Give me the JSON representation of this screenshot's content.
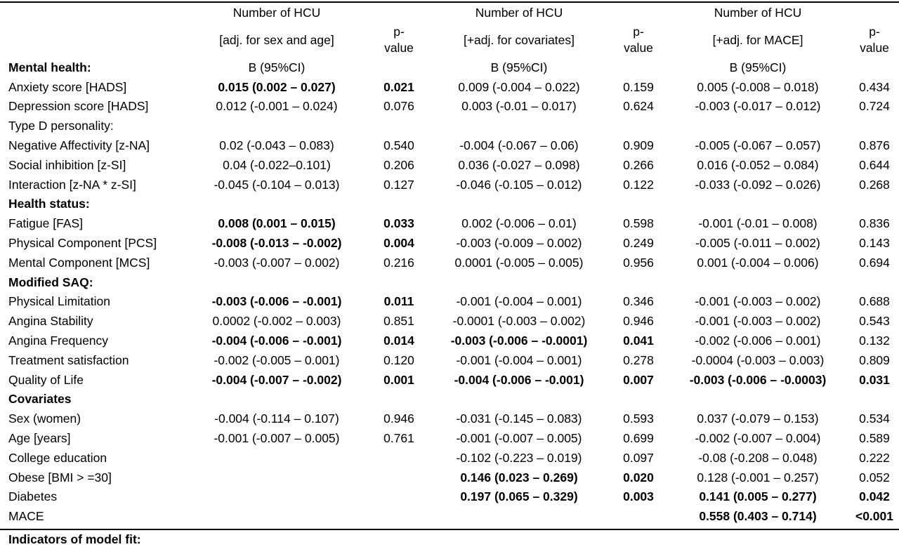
{
  "header": {
    "col1_title": "Number of HCU",
    "col1_sub": "[adj. for sex and age]",
    "col2_title": "Number of HCU",
    "col2_sub": "[+adj. for covariates]",
    "col3_title": "Number of HCU",
    "col3_sub": "[+adj. for MACE]",
    "p_line1": "p-",
    "p_line2": "value",
    "estimate_label": "B (95%CI)"
  },
  "sections": {
    "mental_health": "Mental health:",
    "type_d": "Type D personality:",
    "health_status": "Health status:",
    "modified_saq": "Modified SAQ:",
    "covariates": "Covariates"
  },
  "rows": {
    "anxiety": {
      "label": "Anxiety score [HADS]",
      "b1": "0.015 (0.002 – 0.027)",
      "p1": "0.021",
      "b2": "0.009 (-0.004 – 0.022)",
      "p2": "0.159",
      "b3": "0.005 (-0.008 – 0.018)",
      "p3": "0.434"
    },
    "depression": {
      "label": "Depression score [HADS]",
      "b1": "0.012 (-0.001 – 0.024)",
      "p1": "0.076",
      "b2": "0.003 (-0.01 – 0.017)",
      "p2": "0.624",
      "b3": "-0.003 (-0.017 – 0.012)",
      "p3": "0.724"
    },
    "neg_affect": {
      "label": "Negative Affectivity [z-NA]",
      "b1": "0.02 (-0.043 – 0.083)",
      "p1": "0.540",
      "b2": "-0.004 (-0.067 – 0.06)",
      "p2": "0.909",
      "b3": "-0.005 (-0.067 – 0.057)",
      "p3": "0.876"
    },
    "social_inh": {
      "label": "Social inhibition [z-SI]",
      "b1": "0.04 (-0.022–0.101)",
      "p1": "0.206",
      "b2": "0.036 (-0.027 – 0.098)",
      "p2": "0.266",
      "b3": "0.016 (-0.052 – 0.084)",
      "p3": "0.644"
    },
    "interaction": {
      "label": "Interaction [z-NA * z-SI]",
      "b1": "-0.045 (-0.104 – 0.013)",
      "p1": "0.127",
      "b2": "-0.046 (-0.105 – 0.012)",
      "p2": "0.122",
      "b3": "-0.033 (-0.092 – 0.026)",
      "p3": "0.268"
    },
    "fatigue": {
      "label": "Fatigue [FAS]",
      "b1": "0.008 (0.001 – 0.015)",
      "p1": "0.033",
      "b2": "0.002 (-0.006 – 0.01)",
      "p2": "0.598",
      "b3": "-0.001 (-0.01 – 0.008)",
      "p3": "0.836"
    },
    "pcs": {
      "label": "Physical Component [PCS]",
      "b1": "-0.008 (-0.013 – -0.002)",
      "p1": "0.004",
      "b2": "-0.003 (-0.009 – 0.002)",
      "p2": "0.249",
      "b3": "-0.005 (-0.011 – 0.002)",
      "p3": "0.143"
    },
    "mcs": {
      "label": "Mental Component [MCS]",
      "b1": "-0.003 (-0.007 – 0.002)",
      "p1": "0.216",
      "b2": "0.0001 (-0.005 – 0.005)",
      "p2": "0.956",
      "b3": "0.001 (-0.004 – 0.006)",
      "p3": "0.694"
    },
    "phys_lim": {
      "label": "Physical Limitation",
      "b1": "-0.003 (-0.006 – -0.001)",
      "p1": "0.011",
      "b2": "-0.001 (-0.004 – 0.001)",
      "p2": "0.346",
      "b3": "-0.001 (-0.003 – 0.002)",
      "p3": "0.688"
    },
    "ang_stab": {
      "label": "Angina Stability",
      "b1": "0.0002 (-0.002 – 0.003)",
      "p1": "0.851",
      "b2": "-0.0001 (-0.003 – 0.002)",
      "p2": "0.946",
      "b3": "-0.001 (-0.003 – 0.002)",
      "p3": "0.543"
    },
    "ang_freq": {
      "label": "Angina Frequency",
      "b1": "-0.004 (-0.006 – -0.001)",
      "p1": "0.014",
      "b2": "-0.003 (-0.006 – -0.0001)",
      "p2": "0.041",
      "b3": "-0.002 (-0.006 – 0.001)",
      "p3": "0.132"
    },
    "treat_sat": {
      "label": "Treatment satisfaction",
      "b1": "-0.002 (-0.005 – 0.001)",
      "p1": "0.120",
      "b2": "-0.001 (-0.004 – 0.001)",
      "p2": "0.278",
      "b3": "-0.0004 (-0.003 – 0.003)",
      "p3": "0.809"
    },
    "qol": {
      "label": "Quality of Life",
      "b1": "-0.004 (-0.007 – -0.002)",
      "p1": "0.001",
      "b2": "-0.004 (-0.006 – -0.001)",
      "p2": "0.007",
      "b3": "-0.003 (-0.006 – -0.0003)",
      "p3": "0.031"
    },
    "sex": {
      "label": "Sex (women)",
      "b1": "-0.004 (-0.114 – 0.107)",
      "p1": "0.946",
      "b2": "-0.031 (-0.145 – 0.083)",
      "p2": "0.593",
      "b3": "0.037 (-0.079 – 0.153)",
      "p3": "0.534"
    },
    "age": {
      "label": "Age [years]",
      "b1": "-0.001 (-0.007 – 0.005)",
      "p1": "0.761",
      "b2": "-0.001 (-0.007 – 0.005)",
      "p2": "0.699",
      "b3": "-0.002 (-0.007 – 0.004)",
      "p3": "0.589"
    },
    "college": {
      "label": "College education",
      "b1": "",
      "p1": "",
      "b2": "-0.102 (-0.223 – 0.019)",
      "p2": "0.097",
      "b3": "-0.08 (-0.208 – 0.048)",
      "p3": "0.222"
    },
    "obese": {
      "label": "Obese [BMI > =30]",
      "b1": "",
      "p1": "",
      "b2": "0.146 (0.023 – 0.269)",
      "p2": "0.020",
      "b3": "0.128 (-0.001 – 0.257)",
      "p3": "0.052"
    },
    "diabetes": {
      "label": "Diabetes",
      "b1": "",
      "p1": "",
      "b2": "0.197 (0.065 – 0.329)",
      "p2": "0.003",
      "b3": "0.141 (0.005 – 0.277)",
      "p3": "0.042"
    },
    "mace": {
      "label": "MACE",
      "b1": "",
      "p1": "",
      "b2": "",
      "p2": "",
      "b3": "0.558 (0.403 – 0.714)",
      "p3": "<0.001"
    }
  },
  "footer": "Indicators of model fit:"
}
